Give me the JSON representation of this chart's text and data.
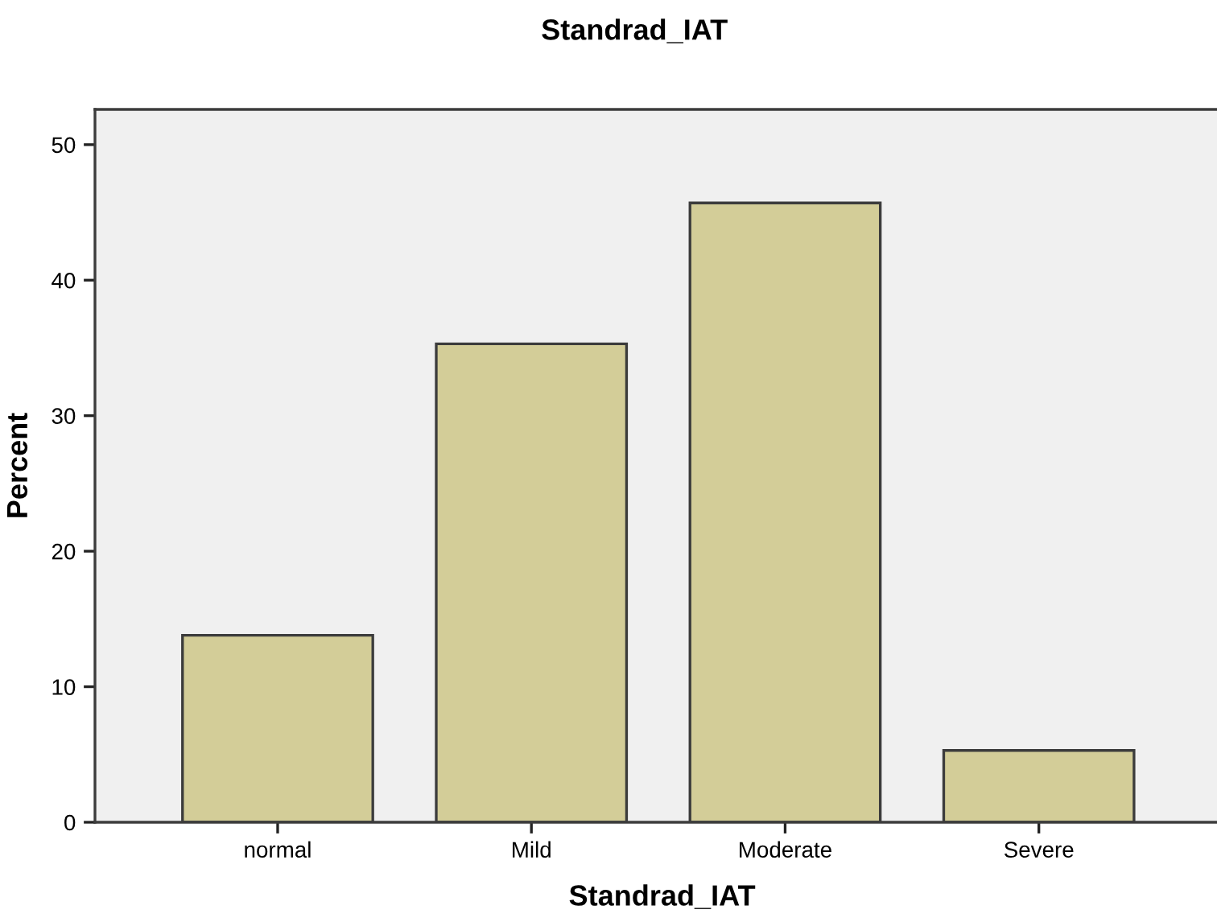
{
  "chart_data": {
    "type": "bar",
    "title": "Standrad_IAT",
    "xlabel": "Standrad_IAT",
    "ylabel": "Percent",
    "categories": [
      "normal",
      "Mild",
      "Moderate",
      "Severe"
    ],
    "values": [
      13.8,
      35.3,
      45.7,
      5.3
    ],
    "color": "#d3cd98",
    "ylim": [
      0,
      52.6
    ],
    "yticks": [
      0,
      10,
      20,
      30,
      40,
      50
    ],
    "grid": false
  }
}
